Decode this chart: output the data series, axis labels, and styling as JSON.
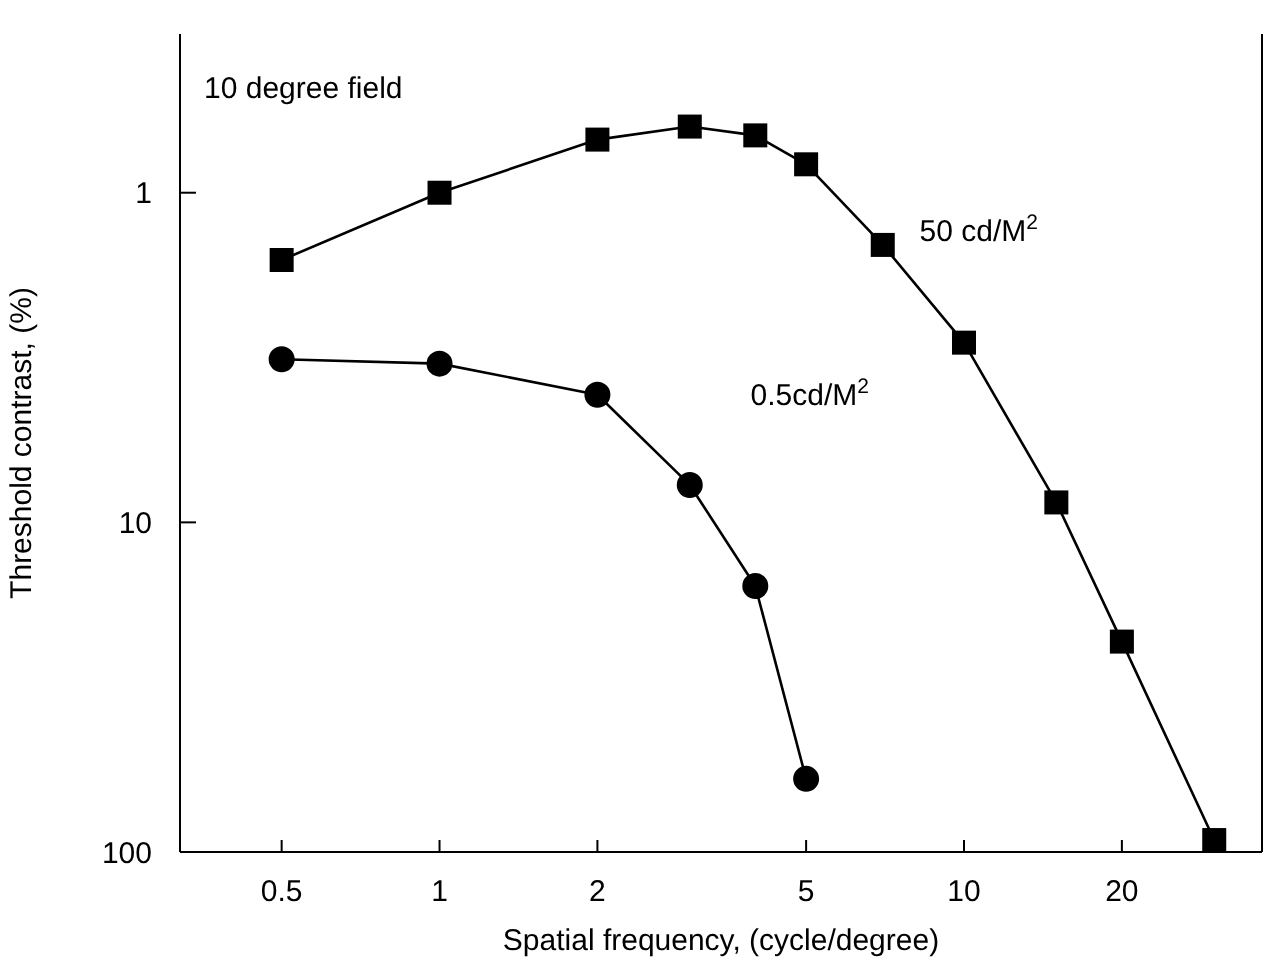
{
  "chart_data": {
    "type": "line",
    "xlabel": "Spatial frequency, (cycle/degree)",
    "ylabel": "Threshold contrast, (%)",
    "annotations": [
      "10 degree field"
    ],
    "log": "xy",
    "xlim": [
      0.32,
      37
    ],
    "xticks": [
      0.5,
      1,
      2,
      5,
      10,
      20
    ],
    "ylim": [
      100,
      0.33
    ],
    "yticks": [
      1,
      10,
      100
    ],
    "line_style": "solid",
    "series": [
      {
        "name": "50 cd/M$^{2}$",
        "color": "#000000",
        "marker": "square",
        "x": [
          0.5,
          1,
          2,
          3,
          4,
          5,
          7,
          10,
          15,
          20,
          30
        ],
        "values": [
          1.6,
          1.0,
          0.69,
          0.63,
          0.67,
          0.82,
          1.44,
          2.85,
          8.7,
          23,
          92
        ]
      },
      {
        "name": "0.5cd/M$^{2}$",
        "color": "#000000",
        "marker": "circle",
        "x": [
          0.5,
          1,
          2,
          3,
          4,
          5
        ],
        "values": [
          3.2,
          3.3,
          4.1,
          7.7,
          15.6,
          60
        ]
      }
    ]
  }
}
